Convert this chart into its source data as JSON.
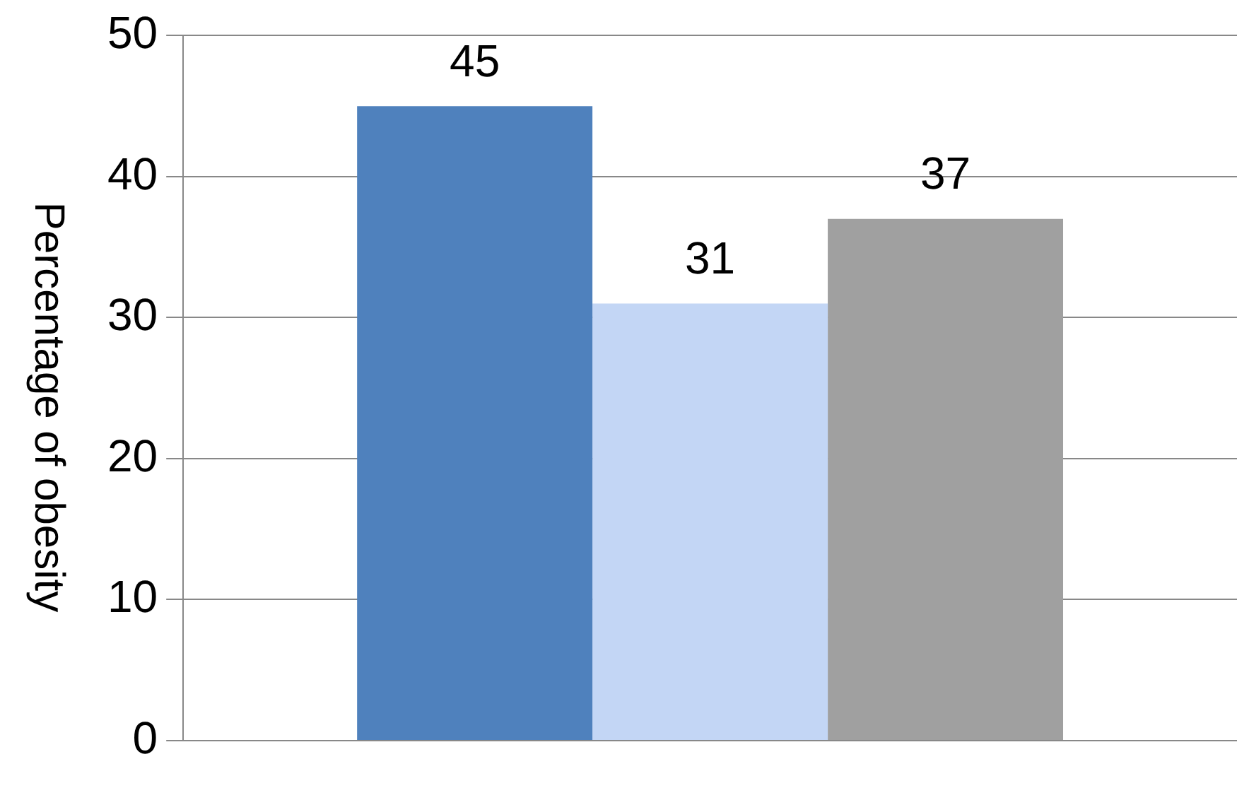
{
  "chart_data": {
    "type": "bar",
    "ylabel": "Percentage of obesity",
    "categories": [
      null
    ],
    "series": [
      {
        "color": "#4f81bd",
        "values": [
          45
        ]
      },
      {
        "color": "#c3d6f5",
        "values": [
          31
        ]
      },
      {
        "color": "#a0a0a0",
        "values": [
          37
        ]
      }
    ],
    "ylim": [
      0,
      50
    ],
    "yticks": [
      0,
      10,
      20,
      30,
      40,
      50
    ],
    "grid": "y",
    "data_labels": true
  }
}
